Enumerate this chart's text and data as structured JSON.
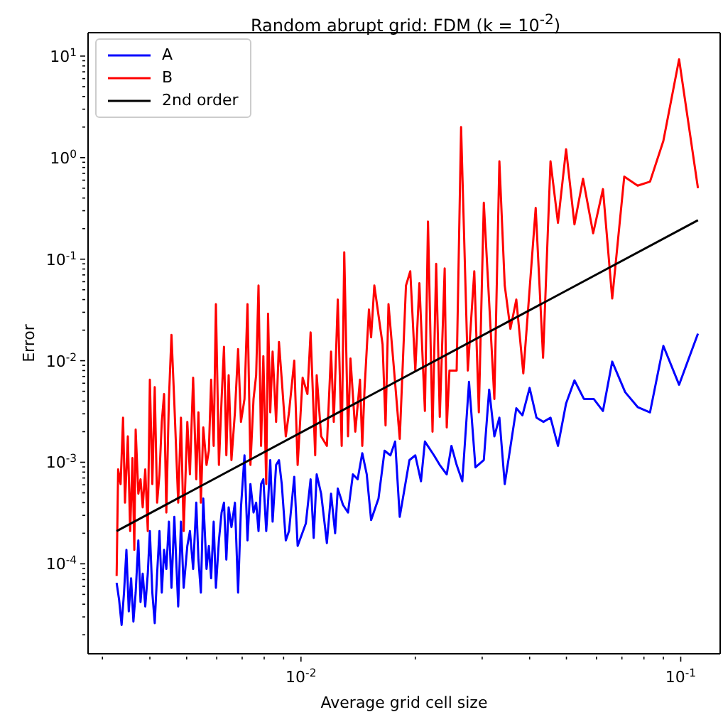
{
  "chart_data": {
    "type": "line",
    "title": "Random abrupt grid: FDM (k = 10$^{-2}$)",
    "xlabel": "Average grid cell size",
    "ylabel": "Error",
    "log": "xy",
    "legend": "top left",
    "xlim": [
      0.00275,
      0.127
    ],
    "ylim": [
      1.3e-05,
      17
    ],
    "xticks": [
      {
        "value": 0.003,
        "label": null
      },
      {
        "value": 0.004,
        "label": null
      },
      {
        "value": 0.005,
        "label": null
      },
      {
        "value": 0.006,
        "label": null
      },
      {
        "value": 0.007,
        "label": null
      },
      {
        "value": 0.008,
        "label": null
      },
      {
        "value": 0.009,
        "label": null
      },
      {
        "value": 0.01,
        "label": "10$^{-2}$"
      },
      {
        "value": 0.02,
        "label": null
      },
      {
        "value": 0.03,
        "label": null
      },
      {
        "value": 0.04,
        "label": null
      },
      {
        "value": 0.05,
        "label": null
      },
      {
        "value": 0.06,
        "label": null
      },
      {
        "value": 0.07,
        "label": null
      },
      {
        "value": 0.08,
        "label": null
      },
      {
        "value": 0.09,
        "label": null
      },
      {
        "value": 0.1,
        "label": "10$^{-1}$"
      }
    ],
    "yticks": [
      {
        "value": 2e-05,
        "label": null
      },
      {
        "value": 3e-05,
        "label": null
      },
      {
        "value": 4e-05,
        "label": null
      },
      {
        "value": 5e-05,
        "label": null
      },
      {
        "value": 6e-05,
        "label": null
      },
      {
        "value": 7e-05,
        "label": null
      },
      {
        "value": 8e-05,
        "label": null
      },
      {
        "value": 9e-05,
        "label": null
      },
      {
        "value": 0.0001,
        "label": "10$^{-4}$"
      },
      {
        "value": 0.0002,
        "label": null
      },
      {
        "value": 0.0003,
        "label": null
      },
      {
        "value": 0.0004,
        "label": null
      },
      {
        "value": 0.0005,
        "label": null
      },
      {
        "value": 0.0006,
        "label": null
      },
      {
        "value": 0.0007,
        "label": null
      },
      {
        "value": 0.0008,
        "label": null
      },
      {
        "value": 0.0009,
        "label": null
      },
      {
        "value": 0.001,
        "label": "10$^{-3}$"
      },
      {
        "value": 0.002,
        "label": null
      },
      {
        "value": 0.003,
        "label": null
      },
      {
        "value": 0.004,
        "label": null
      },
      {
        "value": 0.005,
        "label": null
      },
      {
        "value": 0.006,
        "label": null
      },
      {
        "value": 0.007,
        "label": null
      },
      {
        "value": 0.008,
        "label": null
      },
      {
        "value": 0.009,
        "label": null
      },
      {
        "value": 0.01,
        "label": "10$^{-2}$"
      },
      {
        "value": 0.02,
        "label": null
      },
      {
        "value": 0.03,
        "label": null
      },
      {
        "value": 0.04,
        "label": null
      },
      {
        "value": 0.05,
        "label": null
      },
      {
        "value": 0.06,
        "label": null
      },
      {
        "value": 0.07,
        "label": null
      },
      {
        "value": 0.08,
        "label": null
      },
      {
        "value": 0.09,
        "label": null
      },
      {
        "value": 0.1,
        "label": "10$^{-1}$"
      },
      {
        "value": 0.2,
        "label": null
      },
      {
        "value": 0.3,
        "label": null
      },
      {
        "value": 0.4,
        "label": null
      },
      {
        "value": 0.5,
        "label": null
      },
      {
        "value": 0.6,
        "label": null
      },
      {
        "value": 0.7,
        "label": null
      },
      {
        "value": 0.8,
        "label": null
      },
      {
        "value": 0.9,
        "label": null
      },
      {
        "value": 1,
        "label": "10$^{0}$"
      },
      {
        "value": 2,
        "label": null
      },
      {
        "value": 3,
        "label": null
      },
      {
        "value": 4,
        "label": null
      },
      {
        "value": 5,
        "label": null
      },
      {
        "value": 6,
        "label": null
      },
      {
        "value": 7,
        "label": null
      },
      {
        "value": 8,
        "label": null
      },
      {
        "value": 9,
        "label": null
      },
      {
        "value": 10,
        "label": "10$^{1}$"
      }
    ],
    "series": [
      {
        "name": "A",
        "color": "#0000ff",
        "x": [
          0.00327,
          0.00332,
          0.00337,
          0.00342,
          0.00347,
          0.00352,
          0.00357,
          0.00362,
          0.00367,
          0.00373,
          0.00378,
          0.00383,
          0.00389,
          0.00395,
          0.004,
          0.00406,
          0.00412,
          0.00418,
          0.00424,
          0.0043,
          0.00436,
          0.00442,
          0.00449,
          0.00456,
          0.00464,
          0.00475,
          0.00483,
          0.00491,
          0.00502,
          0.0051,
          0.0052,
          0.0053,
          0.00537,
          0.00545,
          0.00553,
          0.00564,
          0.00572,
          0.0058,
          0.00589,
          0.00597,
          0.00608,
          0.00618,
          0.00627,
          0.00636,
          0.00645,
          0.00656,
          0.0067,
          0.00683,
          0.00695,
          0.0071,
          0.00723,
          0.00736,
          0.0075,
          0.00762,
          0.00773,
          0.00785,
          0.00796,
          0.0081,
          0.00819,
          0.0083,
          0.00842,
          0.0086,
          0.00875,
          0.0089,
          0.00912,
          0.0093,
          0.0096,
          0.0098,
          0.0103,
          0.0106,
          0.0108,
          0.011,
          0.0113,
          0.0117,
          0.012,
          0.0123,
          0.0125,
          0.0129,
          0.0133,
          0.0137,
          0.0141,
          0.0145,
          0.0149,
          0.0153,
          0.016,
          0.0166,
          0.0172,
          0.0177,
          0.0182,
          0.0193,
          0.02,
          0.0207,
          0.0212,
          0.0224,
          0.0232,
          0.0242,
          0.0249,
          0.0257,
          0.0266,
          0.0277,
          0.0288,
          0.0303,
          0.0313,
          0.0323,
          0.0333,
          0.0344,
          0.0369,
          0.0383,
          0.04,
          0.0417,
          0.0435,
          0.0454,
          0.0475,
          0.0499,
          0.0525,
          0.0556,
          0.059,
          0.0624,
          0.066,
          0.0714,
          0.077,
          0.083,
          0.09,
          0.099,
          0.111
        ],
        "values": [
          6.5e-05,
          4.4e-05,
          2.5e-05,
          5.2e-05,
          0.000137,
          3.4e-05,
          7.2e-05,
          2.7e-05,
          5.2e-05,
          0.00017,
          4.2e-05,
          8e-05,
          3.8e-05,
          8e-05,
          0.00021,
          5.2e-05,
          2.6e-05,
          8e-05,
          0.00021,
          5.2e-05,
          0.000137,
          8.9e-05,
          0.00026,
          5.8e-05,
          0.00029,
          3.8e-05,
          0.00026,
          5.8e-05,
          0.00015,
          0.00021,
          8.9e-05,
          0.0004,
          0.00011,
          5.2e-05,
          0.00044,
          8.9e-05,
          0.00015,
          7.2e-05,
          0.00026,
          5.8e-05,
          0.00017,
          0.00032,
          0.0004,
          0.00011,
          0.00036,
          0.00023,
          0.0004,
          5.2e-05,
          0.00036,
          0.00117,
          0.00017,
          0.00061,
          0.00032,
          0.0004,
          0.00021,
          0.00061,
          0.00068,
          0.00021,
          0.0004,
          0.00105,
          0.00026,
          0.00094,
          0.00105,
          0.00061,
          0.00017,
          0.00021,
          0.00072,
          0.00015,
          0.00025,
          0.00068,
          0.00018,
          0.00076,
          0.00049,
          0.00016,
          0.00049,
          0.0002,
          0.00055,
          0.00038,
          0.00032,
          0.00076,
          0.00068,
          0.00123,
          0.00076,
          0.00027,
          0.00044,
          0.0013,
          0.00117,
          0.0016,
          0.00029,
          0.00105,
          0.00117,
          0.00065,
          0.0016,
          0.00117,
          0.00094,
          0.00076,
          0.00145,
          0.00094,
          0.00065,
          0.0062,
          0.00089,
          0.00105,
          0.0052,
          0.0018,
          0.00275,
          0.00061,
          0.0034,
          0.0029,
          0.0054,
          0.00275,
          0.0025,
          0.00275,
          0.00145,
          0.0038,
          0.0064,
          0.0042,
          0.0042,
          0.0032,
          0.0098,
          0.0049,
          0.0035,
          0.0031,
          0.014,
          0.0058,
          0.0185
        ]
      },
      {
        "name": "B",
        "color": "#ff0000",
        "x": [
          0.00327,
          0.0033,
          0.00335,
          0.0034,
          0.00344,
          0.0035,
          0.00355,
          0.0036,
          0.00364,
          0.00367,
          0.00373,
          0.00378,
          0.00383,
          0.00389,
          0.00395,
          0.004,
          0.00406,
          0.00412,
          0.00418,
          0.00424,
          0.0043,
          0.00436,
          0.00442,
          0.00449,
          0.00456,
          0.00464,
          0.00475,
          0.00483,
          0.00491,
          0.00502,
          0.0051,
          0.0052,
          0.0053,
          0.00537,
          0.00545,
          0.00553,
          0.00564,
          0.00572,
          0.0058,
          0.00589,
          0.00597,
          0.00608,
          0.00618,
          0.00627,
          0.00636,
          0.00645,
          0.00656,
          0.0067,
          0.00683,
          0.00695,
          0.0071,
          0.00723,
          0.00736,
          0.0075,
          0.00762,
          0.00773,
          0.00785,
          0.00796,
          0.0081,
          0.00819,
          0.0083,
          0.00842,
          0.0086,
          0.00875,
          0.0089,
          0.00912,
          0.0093,
          0.0096,
          0.0098,
          0.0101,
          0.0104,
          0.0106,
          0.0109,
          0.011,
          0.0113,
          0.0117,
          0.012,
          0.0122,
          0.0125,
          0.0128,
          0.013,
          0.0133,
          0.0135,
          0.0139,
          0.0143,
          0.0145,
          0.0147,
          0.0151,
          0.0153,
          0.0156,
          0.0164,
          0.0167,
          0.017,
          0.0175,
          0.0182,
          0.0189,
          0.0194,
          0.02,
          0.0205,
          0.0212,
          0.0216,
          0.0222,
          0.0227,
          0.0232,
          0.0239,
          0.0242,
          0.0246,
          0.0257,
          0.0264,
          0.0275,
          0.0286,
          0.0294,
          0.0303,
          0.0323,
          0.0333,
          0.0344,
          0.0356,
          0.0369,
          0.0385,
          0.0415,
          0.0434,
          0.0454,
          0.0475,
          0.0499,
          0.0525,
          0.0553,
          0.0588,
          0.0624,
          0.066,
          0.071,
          0.077,
          0.083,
          0.09,
          0.099,
          0.111
        ],
        "values": [
          7.6e-05,
          0.00085,
          0.00061,
          0.00275,
          0.0004,
          0.0018,
          0.00021,
          0.0011,
          0.000137,
          0.0021,
          0.00049,
          0.00068,
          0.00036,
          0.00085,
          0.00021,
          0.0065,
          0.00061,
          0.0055,
          0.0004,
          0.00076,
          0.0025,
          0.0047,
          0.00032,
          0.0042,
          0.018,
          0.0038,
          0.0004,
          0.00275,
          0.00021,
          0.0025,
          0.00076,
          0.0068,
          0.00068,
          0.0031,
          0.0004,
          0.0022,
          0.00094,
          0.0013,
          0.0065,
          0.00145,
          0.036,
          0.00094,
          0.0042,
          0.0137,
          0.00117,
          0.0072,
          0.00105,
          0.0031,
          0.013,
          0.0025,
          0.0042,
          0.036,
          0.00094,
          0.0042,
          0.0072,
          0.055,
          0.00145,
          0.0111,
          0.00061,
          0.029,
          0.0031,
          0.0123,
          0.0025,
          0.0153,
          0.0065,
          0.0018,
          0.0031,
          0.01,
          0.00094,
          0.0068,
          0.0047,
          0.019,
          0.00117,
          0.0072,
          0.0018,
          0.00145,
          0.0123,
          0.0025,
          0.04,
          0.00145,
          0.117,
          0.0018,
          0.0105,
          0.002,
          0.0065,
          0.00145,
          0.0052,
          0.032,
          0.017,
          0.055,
          0.0145,
          0.0023,
          0.036,
          0.01,
          0.0017,
          0.055,
          0.076,
          0.008,
          0.058,
          0.0032,
          0.235,
          0.002,
          0.09,
          0.0028,
          0.081,
          0.0022,
          0.008,
          0.008,
          2.0,
          0.008,
          0.076,
          0.0031,
          0.36,
          0.0042,
          0.92,
          0.055,
          0.0206,
          0.04,
          0.0075,
          0.32,
          0.0107,
          0.92,
          0.228,
          1.21,
          0.22,
          0.62,
          0.18,
          0.49,
          0.041,
          0.65,
          0.53,
          0.58,
          1.46,
          9.3,
          0.5
        ]
      },
      {
        "name": "2nd order",
        "color": "#000000",
        "x": [
          0.00327,
          0.111
        ],
        "values": [
          0.00021,
          0.242
        ]
      }
    ]
  }
}
